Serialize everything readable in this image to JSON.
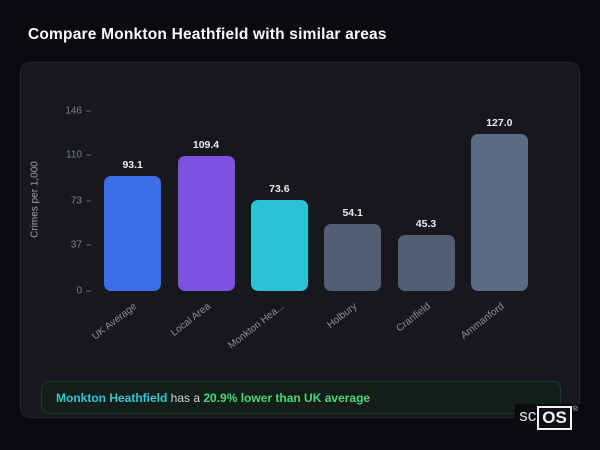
{
  "page": {
    "title": "Compare Monkton Heathfield with similar areas"
  },
  "chart_data": {
    "type": "bar",
    "title": "Compare Monkton Heathfield with similar areas",
    "categories": [
      "UK Average",
      "Local Area",
      "Monkton Hea...",
      "Holbury",
      "Cranfield",
      "Ammanford"
    ],
    "values": [
      93.1,
      109.4,
      73.6,
      54.1,
      45.3,
      127.0
    ],
    "bar_colors": [
      "#3e6de8",
      "#7d52e0",
      "#29c2d6",
      "#525f73",
      "#525f73",
      "#5b6a85"
    ],
    "xlabel": "",
    "ylabel": "Crimes per 1,000",
    "yticks": [
      146,
      110,
      73,
      37,
      0
    ],
    "ylim": [
      0,
      146
    ],
    "grid": false,
    "legend": false
  },
  "note": {
    "area": "Monkton Heathfield",
    "middle": " has a ",
    "highlight": "20.9% lower than UK average"
  },
  "logo": {
    "prefix": "sc",
    "box": "OS",
    "reg": "®"
  }
}
